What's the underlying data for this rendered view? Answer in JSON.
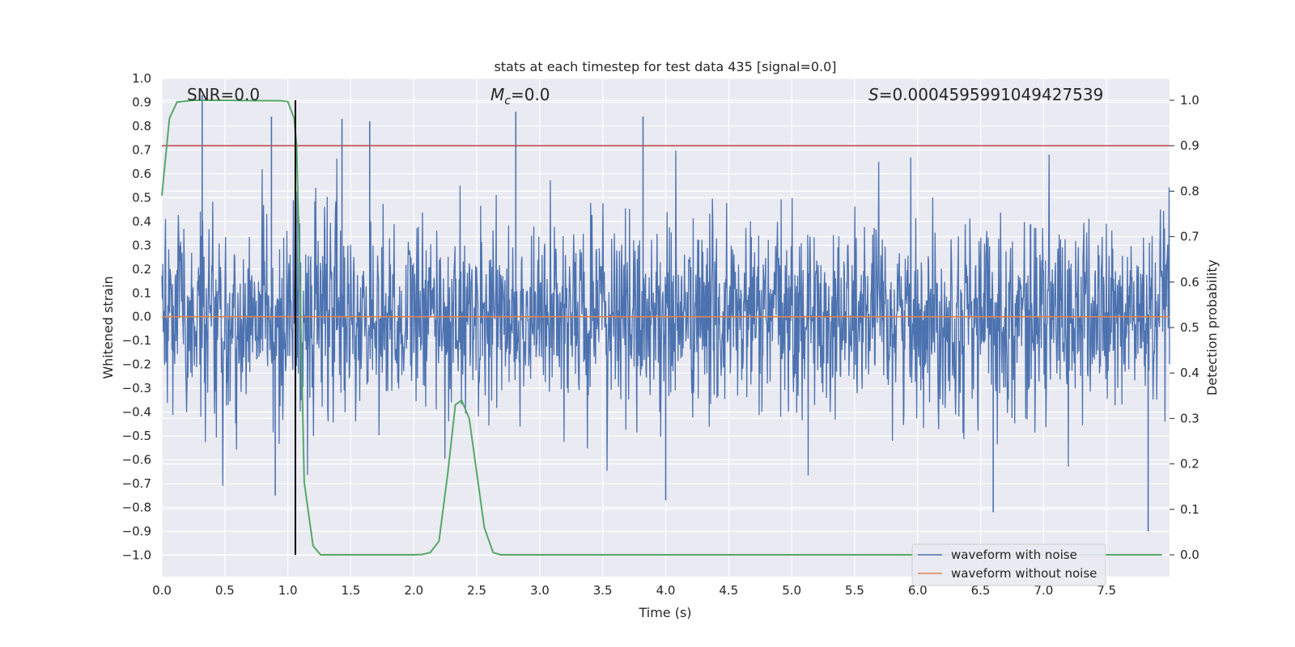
{
  "chart_data": {
    "type": "line",
    "title": "stats at each timestep for test data 435 [signal=0.0]",
    "xlabel": "Time (s)",
    "ylabel": "Whitened strain",
    "y2label": "Detection probability",
    "xlim": [
      0.0,
      8.0
    ],
    "ylim": [
      -1.09,
      1.0
    ],
    "y2lim": [
      -0.048,
      1.048
    ],
    "xticks": [
      "0.0",
      "0.5",
      "1.0",
      "1.5",
      "2.0",
      "2.5",
      "3.0",
      "3.5",
      "4.0",
      "4.5",
      "5.0",
      "5.5",
      "6.0",
      "6.5",
      "7.0",
      "7.5"
    ],
    "yticks": [
      "1.0",
      "0.9",
      "0.8",
      "0.7",
      "0.6",
      "0.5",
      "0.4",
      "0.3",
      "0.2",
      "0.1",
      "0.0",
      "−0.1",
      "−0.2",
      "−0.3",
      "−0.4",
      "−0.5",
      "−0.6",
      "−0.7",
      "−0.8",
      "−0.9",
      "−1.0"
    ],
    "y2ticks": [
      "1.0",
      "0.9",
      "0.8",
      "0.7",
      "0.6",
      "0.5",
      "0.4",
      "0.3",
      "0.2",
      "0.1",
      "0.0"
    ],
    "annotations": {
      "snr": "SNR=0.0",
      "mc_symbol": "M",
      "mc_sub": "c",
      "mc_value": "=0.0",
      "s_symbol": "S",
      "s_value": "=0.0004595991049427539"
    },
    "legend": {
      "placement": "lower-right",
      "entries": [
        "waveform with noise",
        "waveform without noise"
      ]
    },
    "colors": {
      "noise": "#4c72b0",
      "clean": "#dd8452",
      "prob": "#55a868",
      "threshold": "#c44e52",
      "marker": "#000000",
      "axes_bg": "#eaeaf2"
    },
    "threshold_probability": 0.9,
    "marker_time": 1.06,
    "series": [
      {
        "name": "waveform with noise",
        "kind": "noise",
        "amplitude_envelope": [
          -0.9,
          0.93
        ],
        "notable_peaks": [
          {
            "x": 0.32,
            "y": 0.93
          },
          {
            "x": 0.87,
            "y": 0.84
          },
          {
            "x": 1.43,
            "y": 0.83
          },
          {
            "x": 1.65,
            "y": 0.82
          },
          {
            "x": 2.81,
            "y": 0.86
          },
          {
            "x": 3.82,
            "y": 0.84
          },
          {
            "x": 7.83,
            "y": -0.9
          },
          {
            "x": 6.6,
            "y": -0.82
          },
          {
            "x": 0.9,
            "y": -0.75
          },
          {
            "x": 4.0,
            "y": -0.77
          }
        ]
      },
      {
        "name": "waveform without noise",
        "kind": "constant",
        "x": [
          0.0,
          8.0
        ],
        "y": [
          0.0,
          0.0
        ]
      },
      {
        "name": "Detection probability",
        "axis": "right",
        "x": [
          0.0,
          0.06,
          0.12,
          0.25,
          0.5,
          0.75,
          0.94,
          1.0,
          1.05,
          1.07,
          1.1,
          1.13,
          1.2,
          1.26,
          1.5,
          1.75,
          2.0,
          2.07,
          2.13,
          2.2,
          2.27,
          2.33,
          2.38,
          2.44,
          2.5,
          2.56,
          2.63,
          2.69,
          3.0,
          3.5,
          4.0,
          5.0,
          6.0,
          7.0,
          7.94
        ],
        "y": [
          0.79,
          0.96,
          0.996,
          1.0,
          1.0,
          0.999,
          0.999,
          0.997,
          0.96,
          0.9,
          0.55,
          0.16,
          0.02,
          0.0,
          0.0,
          0.0,
          0.0,
          0.001,
          0.005,
          0.03,
          0.18,
          0.33,
          0.34,
          0.3,
          0.18,
          0.06,
          0.005,
          0.0,
          0.0,
          0.0,
          0.0,
          0.0,
          0.0,
          0.0,
          0.0
        ]
      }
    ]
  }
}
